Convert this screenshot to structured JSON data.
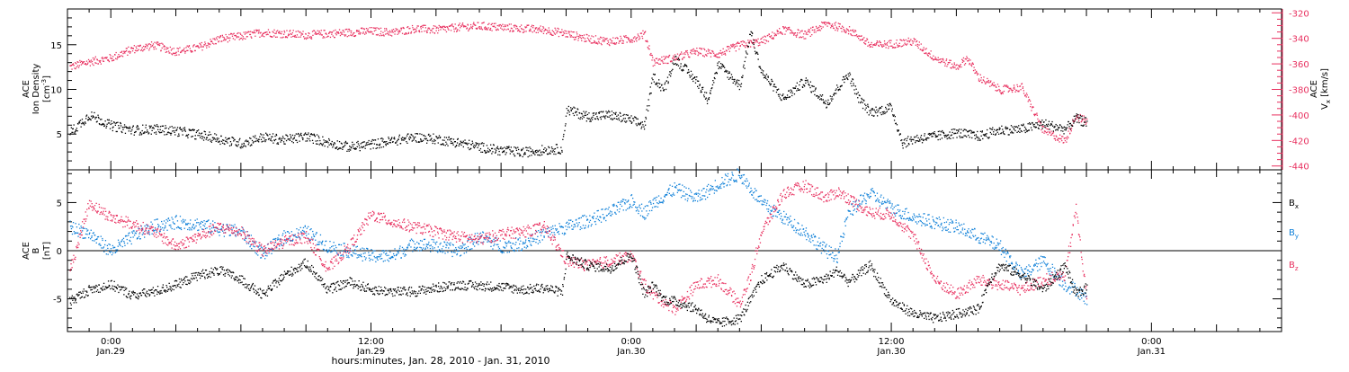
{
  "colors": {
    "black": "#000000",
    "pink": "#e8305f",
    "blue": "#0d7fd8",
    "axis": "#000000"
  },
  "top_panel": {
    "left_label_lines": [
      "ACE",
      "Ion Density"
    ],
    "left_unit_base": "[cm",
    "left_unit_sup": "-3",
    "left_unit_close": "]",
    "right_label_lines": [
      "ACE"
    ],
    "right_unit_base": "V",
    "right_unit_sub": "x",
    "right_unit_rest": " [km/s]"
  },
  "bottom_panel": {
    "label_lines": [
      "ACE",
      "B"
    ],
    "unit": "[nT]",
    "legend": [
      {
        "base": "B",
        "sub": "x",
        "color": "#000000"
      },
      {
        "base": "B",
        "sub": "y",
        "color": "#0d7fd8"
      },
      {
        "base": "B",
        "sub": "z",
        "color": "#e8305f"
      }
    ]
  },
  "x_axis": {
    "title": "hours:minutes, Jan. 28, 2010 - Jan. 31, 2010",
    "ticks": [
      {
        "t": 24,
        "time": "0:00",
        "date": "Jan.29"
      },
      {
        "t": 36,
        "time": "12:00",
        "date": "Jan.29"
      },
      {
        "t": 48,
        "time": "0:00",
        "date": "Jan.30"
      },
      {
        "t": 60,
        "time": "12:00",
        "date": "Jan.30"
      },
      {
        "t": 72,
        "time": "0:00",
        "date": "Jan.31"
      }
    ]
  },
  "chart_data": [
    {
      "type": "scatter",
      "panel": "top",
      "xlabel": "hours:minutes, Jan. 28, 2010 - Jan. 31, 2010",
      "xlim": [
        22,
        78
      ],
      "ylabel": "Ion Density [cm^-3]",
      "ylim": [
        1,
        19
      ],
      "yticks": [
        5,
        10,
        15
      ],
      "y2label": "Vx [km/s]",
      "y2lim": [
        -443,
        -317
      ],
      "y2ticks": [
        -320,
        -340,
        -360,
        -380,
        -400,
        -420,
        -440
      ],
      "series": [
        {
          "name": "Ion Density",
          "axis": "left",
          "color": "#000000",
          "x": [
            22.1,
            23,
            24,
            25,
            26,
            27,
            28,
            29,
            30,
            31,
            32,
            33,
            34,
            35,
            36,
            37,
            38,
            39,
            40,
            41,
            42,
            43,
            44,
            44.8,
            45,
            46,
            47,
            48,
            48.6,
            49,
            49.5,
            50,
            51,
            51.5,
            52,
            53,
            53.5,
            54,
            55,
            56,
            57,
            58,
            58.5,
            59,
            60,
            60.5,
            61,
            62,
            63,
            64,
            65,
            66,
            67,
            68,
            68.5,
            69
          ],
          "y": [
            5.2,
            7.2,
            6,
            5.5,
            5.6,
            5.4,
            5.0,
            4.5,
            4.0,
            4.7,
            4.4,
            4.8,
            4.1,
            3.6,
            3.9,
            4.3,
            4.7,
            4.5,
            4.1,
            3.6,
            3.2,
            3.0,
            3.3,
            3.4,
            7.8,
            7.0,
            7.2,
            6.6,
            6.0,
            11.5,
            10.0,
            13.5,
            11,
            9.0,
            12.8,
            10.5,
            16.5,
            12,
            9.0,
            11,
            8.5,
            11.8,
            9.0,
            7.5,
            8.0,
            4.0,
            4.5,
            4.8,
            5.2,
            4.8,
            5.5,
            5.6,
            6.2,
            5.6,
            6.8,
            6.3
          ]
        },
        {
          "name": "Vx",
          "axis": "right",
          "color": "#e8305f",
          "x": [
            22.1,
            23,
            24,
            25,
            26,
            27,
            28,
            29,
            30,
            31,
            32,
            33,
            34,
            35,
            36,
            37,
            38,
            39,
            40,
            41,
            42,
            43,
            44,
            45,
            46,
            47,
            48,
            48.6,
            49,
            50,
            51,
            52,
            53,
            54,
            55,
            56,
            57,
            58,
            58.5,
            59,
            60,
            61,
            62,
            63,
            63.5,
            64,
            65,
            66,
            67,
            68,
            68.5,
            69
          ],
          "y": [
            -362,
            -358,
            -355,
            -348,
            -345,
            -350,
            -347,
            -340,
            -338,
            -335,
            -336,
            -337,
            -336,
            -335,
            -334,
            -335,
            -332,
            -333,
            -331,
            -330,
            -331,
            -332,
            -333,
            -336,
            -340,
            -342,
            -340,
            -336,
            -358,
            -355,
            -350,
            -352,
            -345,
            -342,
            -333,
            -337,
            -328,
            -333,
            -338,
            -345,
            -344,
            -342,
            -355,
            -362,
            -355,
            -370,
            -380,
            -378,
            -412,
            -420,
            -400,
            -405
          ]
        }
      ]
    },
    {
      "type": "scatter",
      "panel": "bottom",
      "xlim": [
        22,
        78
      ],
      "ylabel": "B [nT]",
      "ylim": [
        -8.4,
        8.4
      ],
      "yticks": [
        -5,
        0,
        5
      ],
      "zero_line": true,
      "series": [
        {
          "name": "Bx",
          "color": "#000000",
          "x": [
            22.1,
            23,
            24,
            25,
            26,
            27,
            28,
            29,
            30,
            31,
            32,
            33,
            34,
            35,
            36,
            37,
            38,
            39,
            40,
            41,
            42,
            43,
            44,
            44.8,
            45,
            46,
            47,
            48,
            48.6,
            49,
            49.5,
            50,
            51,
            51.5,
            52,
            53,
            53.5,
            54,
            55,
            56,
            57,
            57.5,
            58,
            59,
            60,
            61,
            62,
            63,
            64,
            64.5,
            65,
            66,
            67,
            68,
            68.5,
            69
          ],
          "y": [
            -5.2,
            -4.0,
            -3.5,
            -4.6,
            -4.2,
            -3.5,
            -2.5,
            -2.0,
            -3.0,
            -4.6,
            -2.5,
            -1.2,
            -4.0,
            -3.2,
            -4.0,
            -4.2,
            -4.2,
            -3.8,
            -3.5,
            -3.6,
            -3.7,
            -4.0,
            -3.8,
            -4.3,
            -0.5,
            -1.5,
            -1.8,
            -0.4,
            -4.5,
            -3.5,
            -5.0,
            -5.2,
            -6.0,
            -7.0,
            -7.5,
            -7.0,
            -5.0,
            -3.0,
            -1.5,
            -3.5,
            -2.8,
            -2.0,
            -3.2,
            -1.5,
            -5.2,
            -6.5,
            -7.0,
            -6.5,
            -6.0,
            -3.0,
            -1.5,
            -2.5,
            -4.0,
            -1.5,
            -4.5,
            -3.8
          ]
        },
        {
          "name": "By",
          "color": "#0d7fd8",
          "x": [
            22.1,
            23,
            24,
            25,
            26,
            27,
            28,
            29,
            30,
            31,
            32,
            33,
            34,
            35,
            36,
            37,
            38,
            39,
            40,
            41,
            42,
            43,
            44,
            45,
            46,
            47,
            48,
            48.6,
            49,
            50,
            51,
            52,
            53,
            53.5,
            54,
            55,
            56,
            57,
            57.5,
            58,
            59,
            60,
            61,
            62,
            63,
            64,
            65,
            66,
            67,
            68,
            68.5,
            69
          ],
          "y": [
            2.5,
            1.8,
            0.0,
            1.5,
            2.6,
            3.0,
            2.8,
            2.3,
            2.0,
            -0.3,
            1.5,
            2.0,
            0.5,
            0.0,
            -0.5,
            -0.5,
            0.8,
            0.5,
            0.0,
            1.5,
            0.5,
            0.8,
            1.8,
            2.5,
            3.2,
            4.0,
            5.2,
            4.0,
            5.0,
            6.5,
            5.5,
            7.0,
            8.0,
            6.5,
            5.0,
            3.5,
            2.0,
            0.0,
            -0.5,
            4.0,
            6.0,
            4.5,
            3.5,
            3.0,
            2.5,
            1.5,
            0.5,
            -2.5,
            -1.0,
            -3.5,
            -4.0,
            -5.0
          ]
        },
        {
          "name": "Bz",
          "color": "#e8305f",
          "x": [
            22.1,
            23,
            24,
            25,
            26,
            27,
            28,
            29,
            30,
            31,
            32,
            33,
            34,
            35,
            36,
            37,
            38,
            39,
            40,
            41,
            42,
            43,
            44,
            45,
            46,
            47,
            48,
            48.6,
            49,
            50,
            51,
            52,
            53,
            53.5,
            54,
            55,
            56,
            57,
            57.5,
            58,
            59,
            60,
            61,
            62,
            63,
            64,
            65,
            66,
            67,
            68,
            68.5,
            69
          ],
          "y": [
            -2.0,
            5.0,
            3.5,
            2.8,
            2.0,
            0.5,
            1.5,
            2.5,
            2.0,
            0.0,
            1.0,
            1.5,
            -1.8,
            0.5,
            3.8,
            3.0,
            2.5,
            2.0,
            1.5,
            1.2,
            1.8,
            2.0,
            2.5,
            -1.0,
            -1.5,
            -1.0,
            -0.5,
            -3.5,
            -4.5,
            -6.0,
            -3.5,
            -3.0,
            -5.5,
            -2.5,
            2.0,
            6.0,
            6.8,
            5.5,
            6.2,
            5.5,
            4.0,
            3.8,
            1.5,
            -3.0,
            -4.5,
            -3.0,
            -3.5,
            -4.0,
            -3.0,
            -2.5,
            4.5,
            -5.0
          ]
        }
      ]
    }
  ]
}
